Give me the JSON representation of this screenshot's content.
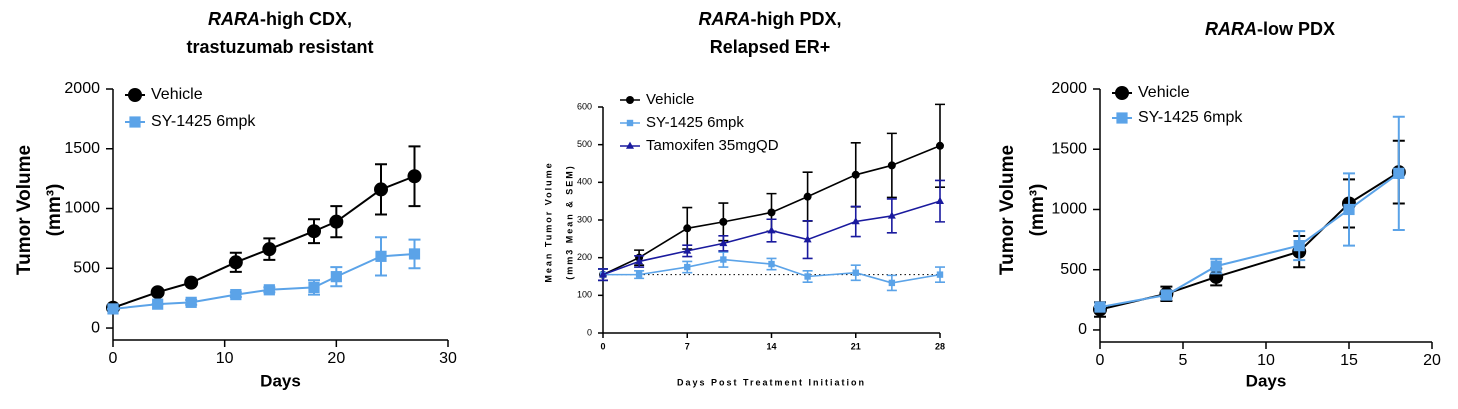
{
  "chart_data": [
    {
      "type": "line",
      "title": {
        "italic": "RARA",
        "line1": "-high CDX,",
        "line2": "trastuzumab resistant"
      },
      "y_label": [
        "Tumor Volume",
        "(mm³)"
      ],
      "x_label": "Days",
      "x": [
        0,
        4,
        7,
        11,
        14,
        18,
        20,
        24,
        27
      ],
      "series": [
        {
          "name": "Vehicle",
          "color": "#000000",
          "marker": "circle",
          "values": [
            170,
            300,
            380,
            550,
            660,
            810,
            890,
            1160,
            1270
          ],
          "errors": [
            0,
            20,
            20,
            80,
            90,
            100,
            130,
            210,
            250
          ]
        },
        {
          "name": "SY-1425 6mpk",
          "color": "#5ba3e8",
          "marker": "square",
          "values": [
            160,
            200,
            215,
            280,
            320,
            340,
            430,
            600,
            620
          ],
          "errors": [
            0,
            0,
            20,
            20,
            20,
            60,
            80,
            160,
            120
          ]
        }
      ],
      "xlim": [
        0,
        30
      ],
      "xticks": [
        0,
        10,
        20,
        30
      ],
      "ylim": [
        -100,
        2000
      ],
      "yticks": [
        0,
        500,
        1000,
        1500,
        2000
      ]
    },
    {
      "type": "line",
      "title": {
        "italic": "RARA",
        "line1": "-high PDX,",
        "line2": "Relapsed ER+"
      },
      "y_label": [
        "Mean Tumor Volume",
        "(mm3 Mean & SEM)"
      ],
      "x_label": "Days Post Treatment Initiation",
      "x": [
        0,
        3,
        7,
        10,
        14,
        17,
        21,
        24,
        28
      ],
      "series": [
        {
          "name": "Vehicle",
          "color": "#000000",
          "marker": "circle",
          "values": [
            155,
            200,
            278,
            295,
            320,
            362,
            420,
            445,
            497
          ],
          "errors": [
            15,
            20,
            55,
            50,
            50,
            65,
            85,
            85,
            110
          ]
        },
        {
          "name": "SY-1425 6mpk",
          "color": "#5ba3e8",
          "marker": "square",
          "values": [
            155,
            155,
            175,
            195,
            183,
            150,
            160,
            133,
            155
          ],
          "errors": [
            15,
            10,
            15,
            20,
            15,
            15,
            20,
            20,
            20
          ]
        },
        {
          "name": "Tamoxifen 35mgQD",
          "color": "#1a1a9e",
          "marker": "triangle",
          "values": [
            155,
            190,
            218,
            238,
            272,
            248,
            296,
            311,
            350
          ],
          "errors": [
            15,
            15,
            15,
            20,
            30,
            50,
            40,
            45,
            55
          ]
        }
      ],
      "reference_line": 155,
      "xlim": [
        0,
        28
      ],
      "xticks": [
        0,
        7,
        14,
        21,
        28
      ],
      "ylim": [
        0,
        600
      ],
      "yticks": [
        0,
        100,
        200,
        300,
        400,
        500,
        600
      ]
    },
    {
      "type": "line",
      "title": {
        "italic": "RARA",
        "line1": "-low PDX"
      },
      "y_label": [
        "Tumor Volume",
        "(mm³)"
      ],
      "x_label": "Days",
      "x": [
        0,
        4,
        7,
        12,
        15,
        18
      ],
      "series": [
        {
          "name": "Vehicle",
          "color": "#000000",
          "marker": "circle",
          "values": [
            170,
            300,
            440,
            650,
            1050,
            1310
          ],
          "errors": [
            60,
            60,
            70,
            130,
            200,
            260
          ]
        },
        {
          "name": "SY-1425 6mpk",
          "color": "#5ba3e8",
          "marker": "square",
          "values": [
            190,
            290,
            530,
            700,
            1000,
            1300
          ],
          "errors": [
            0,
            30,
            60,
            120,
            300,
            470
          ]
        }
      ],
      "xlim": [
        0,
        20
      ],
      "xticks": [
        0,
        5,
        10,
        15,
        20
      ],
      "ylim": [
        -100,
        2000
      ],
      "yticks": [
        0,
        500,
        1000,
        1500,
        2000
      ]
    }
  ]
}
